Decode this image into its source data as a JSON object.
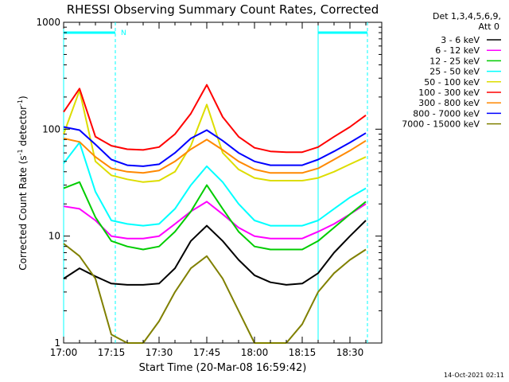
{
  "chart_data": {
    "type": "line",
    "title": "RHESSI Observing Summary Count Rates, Corrected",
    "xlabel": "Start Time (20-Mar-08 16:59:42)",
    "ylabel_main": "Corrected Count Rate (s",
    "ylabel_sup1": "-1",
    "ylabel_mid": " detector",
    "ylabel_sup2": "-1",
    "ylabel_end": ")",
    "yscale": "log",
    "ylim": [
      1,
      1000
    ],
    "xlim_minutes": [
      0,
      40
    ],
    "x_ticks": [
      {
        "label": "17:00",
        "min": 0
      },
      {
        "label": "17:15",
        "min": 15
      },
      {
        "label": "17:30",
        "min": 30
      },
      {
        "label": "17:45",
        "min": 45
      },
      {
        "label": "18:00",
        "min": 60
      },
      {
        "label": "18:15",
        "min": 75
      },
      {
        "label": "18:30",
        "min": 90
      }
    ],
    "y_ticks": [
      {
        "label": "1",
        "v": 1
      },
      {
        "label": "10",
        "v": 10
      },
      {
        "label": "100",
        "v": 100
      },
      {
        "label": "1000",
        "v": 1000
      }
    ],
    "legend_header": [
      "Det 1,3,4,5,6,9,",
      "Att 0"
    ],
    "night_marker": "N",
    "timestamp": "14-Oct-2021 02:11",
    "x_unit": "minutes since 17:00",
    "series": [
      {
        "name": "3 - 6 keV",
        "color": "#000000",
        "x": [
          0,
          5,
          10,
          15,
          20,
          25,
          30,
          35,
          40,
          45,
          50,
          55,
          60,
          65,
          70,
          75,
          80,
          85,
          90,
          95
        ],
        "y": [
          4.0,
          5.0,
          4.2,
          3.6,
          3.5,
          3.5,
          3.6,
          5.0,
          9.0,
          12.5,
          9.0,
          6.0,
          4.3,
          3.7,
          3.5,
          3.6,
          4.5,
          7.0,
          10.0,
          14.0
        ]
      },
      {
        "name": "6 - 12 keV",
        "color": "#ff00ff",
        "x": [
          0,
          5,
          10,
          15,
          20,
          25,
          30,
          35,
          40,
          45,
          50,
          55,
          60,
          65,
          70,
          75,
          80,
          85,
          90,
          95
        ],
        "y": [
          19,
          18,
          14,
          10,
          9.5,
          9.5,
          10,
          13,
          17,
          21,
          16,
          12,
          10,
          9.5,
          9.5,
          9.5,
          11,
          13,
          16,
          20
        ]
      },
      {
        "name": "12 - 25 keV",
        "color": "#00cc00",
        "x": [
          0,
          5,
          10,
          15,
          20,
          25,
          30,
          35,
          40,
          45,
          50,
          55,
          60,
          65,
          70,
          75,
          80,
          85,
          90,
          95
        ],
        "y": [
          28,
          32,
          15,
          9,
          8,
          7.5,
          8,
          11,
          17,
          30,
          18,
          11,
          8,
          7.5,
          7.5,
          7.5,
          9,
          12,
          16,
          21
        ]
      },
      {
        "name": "25 - 50 keV",
        "color": "#00ffff",
        "x": [
          0,
          5,
          10,
          15,
          20,
          25,
          30,
          35,
          40,
          45,
          50,
          55,
          60,
          65,
          70,
          75,
          80,
          85,
          90,
          95
        ],
        "y": [
          48,
          75,
          26,
          14,
          13,
          12.5,
          13,
          18,
          30,
          45,
          32,
          20,
          14,
          12.5,
          12.5,
          12.5,
          14,
          18,
          23,
          28
        ]
      },
      {
        "name": "50 - 100 keV",
        "color": "#dddd00",
        "x": [
          0,
          5,
          10,
          15,
          20,
          25,
          30,
          35,
          40,
          45,
          50,
          55,
          60,
          65,
          70,
          75,
          80,
          85,
          90,
          95
        ],
        "y": [
          90,
          230,
          50,
          37,
          34,
          32,
          33,
          40,
          70,
          170,
          60,
          42,
          35,
          33,
          33,
          33,
          35,
          40,
          47,
          55
        ]
      },
      {
        "name": "100 - 300 keV",
        "color": "#ff0000",
        "x": [
          0,
          5,
          10,
          15,
          20,
          25,
          30,
          35,
          40,
          45,
          50,
          55,
          60,
          65,
          70,
          75,
          80,
          85,
          90,
          95
        ],
        "y": [
          145,
          240,
          85,
          70,
          65,
          64,
          68,
          90,
          140,
          260,
          130,
          85,
          67,
          62,
          61,
          61,
          68,
          85,
          105,
          135
        ]
      },
      {
        "name": "300 - 800 keV",
        "color": "#ff8800",
        "x": [
          0,
          5,
          10,
          15,
          20,
          25,
          30,
          35,
          40,
          45,
          50,
          55,
          60,
          65,
          70,
          75,
          80,
          85,
          90,
          95
        ],
        "y": [
          82,
          76,
          55,
          43,
          40,
          39,
          41,
          50,
          65,
          80,
          64,
          50,
          42,
          39,
          39,
          39,
          43,
          52,
          63,
          78
        ]
      },
      {
        "name": "800 - 7000 keV",
        "color": "#0000ff",
        "x": [
          0,
          5,
          10,
          15,
          20,
          25,
          30,
          35,
          40,
          45,
          50,
          55,
          60,
          65,
          70,
          75,
          80,
          85,
          90,
          95
        ],
        "y": [
          105,
          98,
          72,
          52,
          46,
          45,
          47,
          60,
          82,
          98,
          78,
          60,
          50,
          46,
          46,
          46,
          52,
          62,
          75,
          92
        ]
      },
      {
        "name": "7000 - 15000 keV",
        "color": "#808000",
        "x": [
          0,
          5,
          10,
          15,
          20,
          25,
          30,
          35,
          40,
          45,
          50,
          55,
          60,
          65,
          70,
          75,
          80,
          85,
          90,
          95
        ],
        "y": [
          8.5,
          6.5,
          4.0,
          1.2,
          1.0,
          1.0,
          1.6,
          3.0,
          5.0,
          6.5,
          4.0,
          2.0,
          1.0,
          1.0,
          1.0,
          1.5,
          3.0,
          4.5,
          6.0,
          7.5
        ]
      }
    ]
  }
}
